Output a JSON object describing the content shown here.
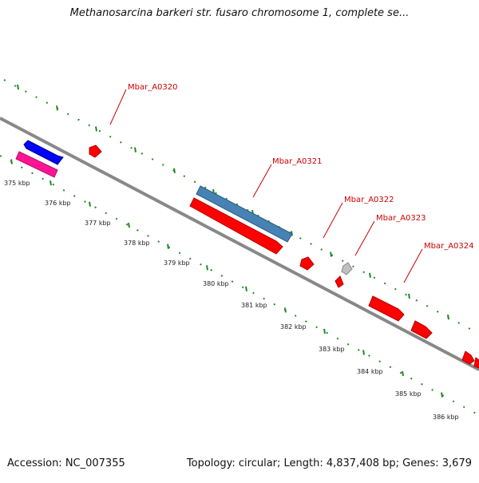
{
  "title": "Methanosarcina barkeri str. fusaro chromosome 1, complete se...",
  "footer": {
    "accession": "Accession: NC_007355",
    "topology": "Topology: circular; Length: 4,837,408 bp; Genes: 3,679"
  },
  "colors": {
    "backbone": "#888888",
    "ticks": "#228B22",
    "label": "#cc0000",
    "gene_red": "#ff0000",
    "gene_blue": "#0000ff",
    "gene_steelblue": "#4682b4",
    "gene_pink": "#ff1493",
    "gene_gray": "#c0c0c0"
  },
  "scale_labels": [
    "375 kbp",
    "376 kbp",
    "377 kbp",
    "378 kbp",
    "379 kbp",
    "380 kbp",
    "381 kbp",
    "382 kbp",
    "383 kbp",
    "384 kbp",
    "385 kbp",
    "386 kbp"
  ],
  "gene_labels": [
    "Mbar_A0320",
    "Mbar_A0321",
    "Mbar_A0322",
    "Mbar_A0323",
    "Mbar_A0324"
  ]
}
